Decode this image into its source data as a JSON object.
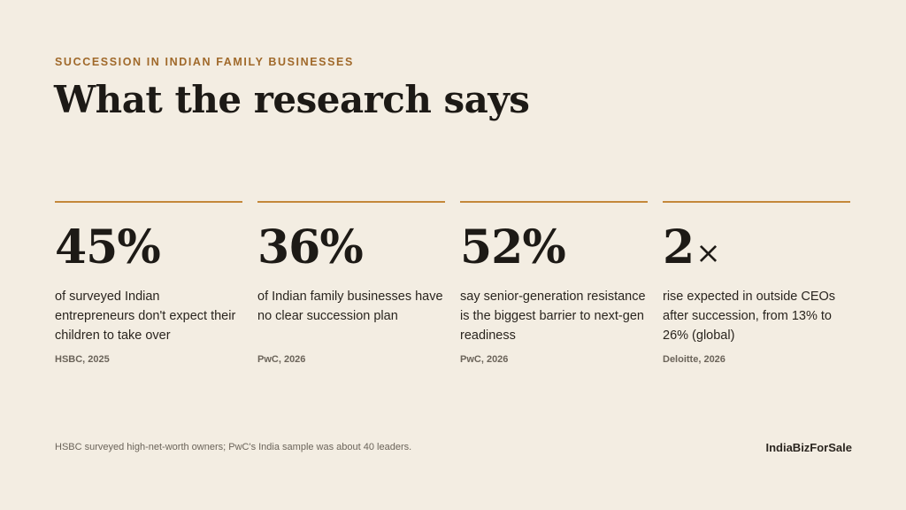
{
  "eyebrow": "SUCCESSION IN INDIAN FAMILY BUSINESSES",
  "title": "What the research says",
  "accent_color": "#c4883a",
  "stats": [
    {
      "value": "45%",
      "description": "of surveyed Indian entrepreneurs don't expect their children to take over",
      "source": "HSBC, 2025"
    },
    {
      "value": "36%",
      "description": "of Indian family businesses have no clear succession plan",
      "source": "PwC, 2026"
    },
    {
      "value": "52%",
      "description": "say senior-generation resistance is the biggest barrier to next-gen readiness",
      "source": "PwC, 2026"
    },
    {
      "value": "2",
      "value_suffix": "×",
      "description": "rise expected in outside CEOs after succession, from 13% to 26% (global)",
      "source": "Deloitte, 2026"
    }
  ],
  "footnote": "HSBC surveyed high-net-worth owners; PwC's India sample was about 40 leaders.",
  "brand": "IndiaBizForSale"
}
